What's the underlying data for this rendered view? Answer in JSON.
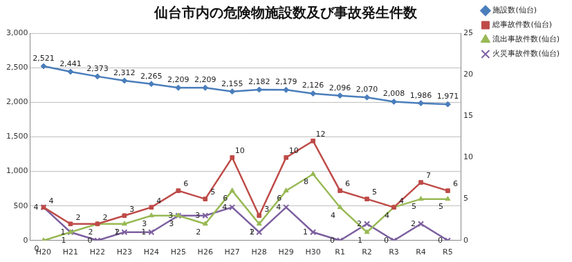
{
  "chart_data": {
    "type": "line",
    "title": "仙台市内の危険物施設数及び事故発生件数",
    "categories": [
      "H20",
      "H21",
      "H22",
      "H23",
      "H24",
      "H25",
      "H26",
      "H27",
      "H28",
      "H29",
      "H30",
      "R1",
      "R2",
      "R3",
      "R4",
      "R5"
    ],
    "series": [
      {
        "name": "施設数(仙台)",
        "color": "#4A7EBB",
        "marker": "diamond",
        "line_style": "solid",
        "axis": "y",
        "values": [
          2521,
          2441,
          2373,
          2312,
          2265,
          2209,
          2209,
          2155,
          2182,
          2179,
          2126,
          2096,
          2070,
          2008,
          1986,
          1971
        ],
        "value_labels": [
          "2,521",
          "2,441",
          "2,373",
          "2,312",
          "2,265",
          "2,209",
          "2,209",
          "2,155",
          "2,182",
          "2,179",
          "2,126",
          "2,096",
          "2,070",
          "2,008",
          "1,986",
          "1,971"
        ]
      },
      {
        "name": "総事故件数(仙台)",
        "color": "#BE4B48",
        "marker": "square",
        "line_style": "solid",
        "axis": "y2",
        "values": [
          4,
          2,
          2,
          3,
          4,
          6,
          5,
          10,
          3,
          10,
          12,
          6,
          5,
          4,
          7,
          6
        ]
      },
      {
        "name": "流出事故件数(仙台)",
        "color": "#98B954",
        "marker": "triangle",
        "line_style": "solid",
        "axis": "y2",
        "values": [
          0,
          1,
          2,
          2,
          3,
          3,
          2,
          6,
          2,
          6,
          8,
          4,
          1,
          4,
          5,
          5
        ]
      },
      {
        "name": "火災事故件数(仙台)",
        "color": "#7D60A0",
        "marker": "x",
        "line_style": "solid",
        "axis": "y2",
        "values": [
          4,
          1,
          0,
          1,
          1,
          3,
          3,
          4,
          1,
          4,
          1,
          0,
          2,
          0,
          2,
          0
        ]
      }
    ],
    "ylim": [
      0,
      3000
    ],
    "yticks": [
      0,
      500,
      {
        "value": 1000,
        "label": "1,000"
      },
      {
        "value": 1500,
        "label": "1,500"
      },
      {
        "value": 2000,
        "label": "2,000"
      },
      {
        "value": 2500,
        "label": "2,500"
      },
      {
        "value": 3000,
        "label": "3,000"
      }
    ],
    "y2lim": [
      0,
      25
    ],
    "y2ticks": [
      0,
      5,
      10,
      15,
      20,
      25
    ],
    "grid": true,
    "legend": "right",
    "data_labels": true
  }
}
